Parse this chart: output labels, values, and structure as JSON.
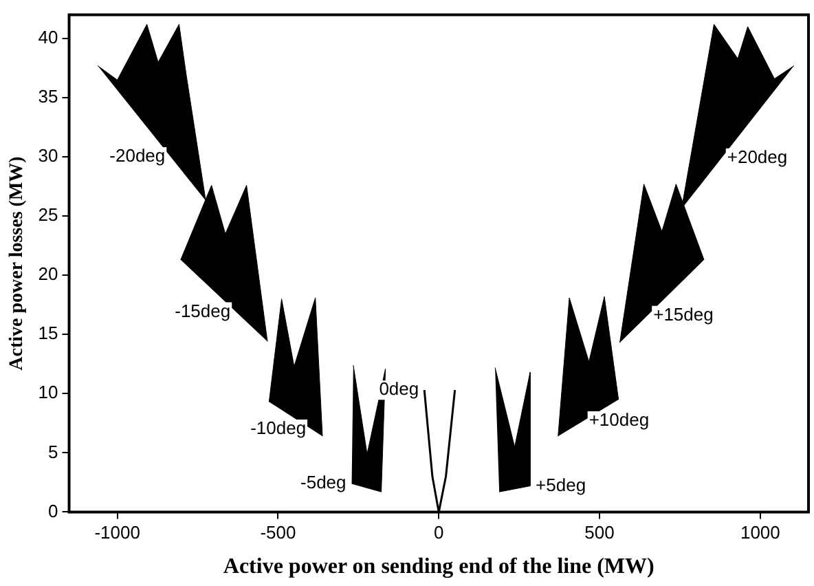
{
  "chart_data": {
    "type": "area",
    "xlabel": "Active power on sending end of the line (MW)",
    "ylabel": "Active power losses (MW)",
    "xlim": [
      -1150,
      1150
    ],
    "ylim": [
      0,
      42
    ],
    "xticks": [
      -1000,
      -500,
      0,
      500,
      1000
    ],
    "yticks": [
      0,
      5,
      10,
      15,
      20,
      25,
      30,
      35,
      40
    ],
    "grid": false,
    "legend": false,
    "marker": "none",
    "series": [
      {
        "color": "#000000",
        "x": [
          -1061,
          -1000,
          -908,
          -873,
          -808,
          -786,
          -725
        ],
        "values": [
          37.7,
          36.5,
          41.2,
          38,
          41.2,
          37,
          26.3
        ]
      },
      {
        "color": "#000000",
        "x": [
          -803,
          -707,
          -664,
          -598,
          -533
        ],
        "values": [
          21.3,
          27.6,
          23.5,
          27.6,
          14.4
        ]
      },
      {
        "color": "#000000",
        "x": [
          -528,
          -489,
          -450,
          -384,
          -362
        ],
        "values": [
          9.3,
          18,
          12.3,
          18.1,
          6.4
        ]
      },
      {
        "color": "#000000",
        "x": [
          -266,
          -223,
          -166,
          -179,
          -271
        ],
        "values": [
          12.4,
          4.9,
          12.1,
          1.7,
          2.4
        ]
      },
      {
        "type": "line",
        "color": "#000000",
        "x": [
          -45,
          -20,
          0,
          22,
          50
        ],
        "values": [
          10.3,
          3,
          0,
          3,
          10.3
        ]
      },
      {
        "color": "#000000",
        "x": [
          175,
          236,
          284,
          284,
          188
        ],
        "values": [
          12.2,
          5.5,
          11.8,
          2.2,
          1.7
        ]
      },
      {
        "color": "#000000",
        "x": [
          371,
          406,
          467,
          515,
          559
        ],
        "values": [
          6.4,
          18.1,
          12.7,
          18.2,
          9.5
        ]
      },
      {
        "color": "#000000",
        "x": [
          563,
          638,
          694,
          738,
          825
        ],
        "values": [
          14.3,
          27.7,
          23.7,
          27.7,
          21.3
        ]
      },
      {
        "color": "#000000",
        "x": [
          755,
          856,
          930,
          961,
          1044,
          1105
        ],
        "values": [
          25.6,
          41.2,
          38.3,
          41,
          36.6,
          37.7
        ]
      }
    ],
    "annotations": [
      {
        "text": "-20deg",
        "x": -834,
        "y": 30
      },
      {
        "text": "-15deg",
        "x": -631,
        "y": 16.9
      },
      {
        "text": "-10deg",
        "x": -396,
        "y": 7
      },
      {
        "text": "-5deg",
        "x": -271,
        "y": 2.4
      },
      {
        "text": "0deg",
        "x": -45,
        "y": 10.3
      },
      {
        "text": "+5deg",
        "x": 284,
        "y": 2.2
      },
      {
        "text": "+10deg",
        "x": 450,
        "y": 7.7
      },
      {
        "text": "+15deg",
        "x": 650,
        "y": 16.6
      },
      {
        "text": "+20deg",
        "x": 880,
        "y": 29.9
      }
    ]
  }
}
